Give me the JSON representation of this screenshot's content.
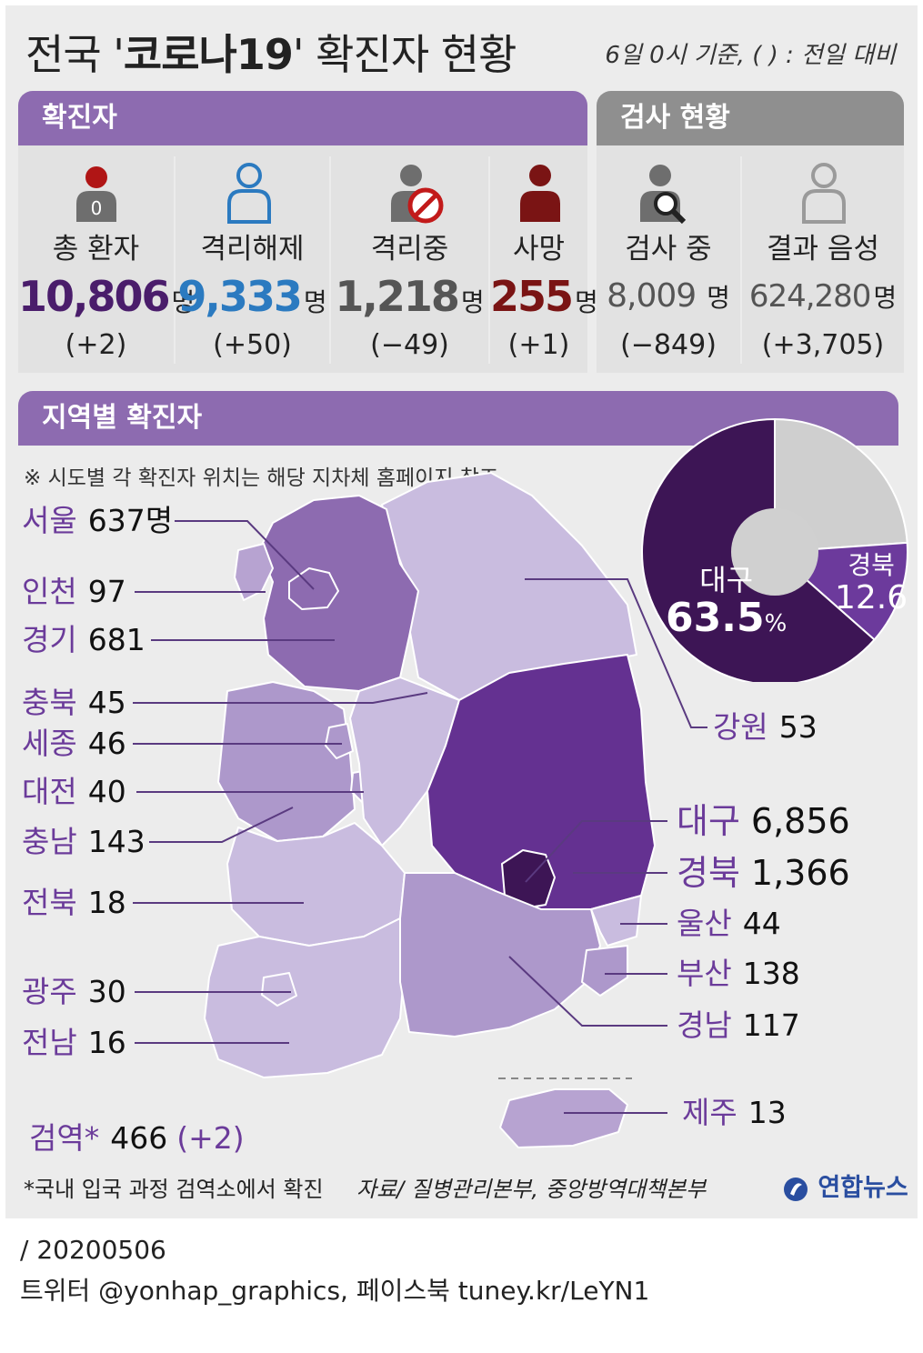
{
  "header": {
    "title_prefix": "전국 '",
    "title_bold": "코로나19",
    "title_suffix": "' 확진자 현황",
    "basis": "6일 0시 기준, ( ) : 전일 대비"
  },
  "confirmed": {
    "header": "확진자",
    "items": [
      {
        "label": "총 환자",
        "value": "10,806",
        "unit": "명",
        "change": "(+2)",
        "icon": "person-badge-icon"
      },
      {
        "label": "격리해제",
        "value": "9,333",
        "unit": "명",
        "change": "(+50)",
        "icon": "person-outline-icon"
      },
      {
        "label": "격리중",
        "value": "1,218",
        "unit": "명",
        "change": "(−49)",
        "icon": "person-prohibited-icon"
      },
      {
        "label": "사망",
        "value": "255",
        "unit": "명",
        "change": "(+1)",
        "icon": "person-solid-icon"
      }
    ]
  },
  "testing": {
    "header": "검사 현황",
    "items": [
      {
        "label": "검사 중",
        "value": "8,009",
        "unit": " 명",
        "change": "(−849)",
        "icon": "person-magnifier-icon"
      },
      {
        "label": "결과 음성",
        "value": "624,280",
        "unit": "명",
        "change": "(+3,705)",
        "icon": "person-outline-gray-icon"
      }
    ]
  },
  "regional": {
    "header": "지역별 확진자",
    "note": "※ 시도별 각 확진자 위치는 해당 지차체 홈페이지 참조",
    "left": [
      {
        "name": "서울",
        "value": "637명"
      },
      {
        "name": "인천",
        "value": "97"
      },
      {
        "name": "경기",
        "value": "681"
      },
      {
        "name": "충북",
        "value": "45"
      },
      {
        "name": "세종",
        "value": "46"
      },
      {
        "name": "대전",
        "value": "40"
      },
      {
        "name": "충남",
        "value": "143"
      },
      {
        "name": "전북",
        "value": "18"
      },
      {
        "name": "광주",
        "value": "30"
      },
      {
        "name": "전남",
        "value": "16"
      }
    ],
    "right": [
      {
        "name": "강원",
        "value": "53"
      },
      {
        "name": "대구",
        "value": "6,856"
      },
      {
        "name": "경북",
        "value": "1,366"
      },
      {
        "name": "울산",
        "value": "44"
      },
      {
        "name": "부산",
        "value": "138"
      },
      {
        "name": "경남",
        "value": "117"
      },
      {
        "name": "제주",
        "value": "13"
      }
    ],
    "quarantine": {
      "name": "검역*",
      "value": "466",
      "change": "(+2)"
    }
  },
  "chart_data": {
    "type": "pie",
    "slices": [
      {
        "label": "대구",
        "value": 63.5
      },
      {
        "label": "경북",
        "value": 12.6
      },
      {
        "label": "",
        "value": 23.9
      }
    ],
    "value_labels": {
      "daegu": "63.5",
      "gyeongbuk": "12.6",
      "unit": "%"
    },
    "colors": {
      "daegu": "#3d1555",
      "gyeongbuk": "#6c3a9c",
      "other": "#cfcfcf"
    }
  },
  "footer": {
    "footnote": "*국내 입국 과정 검역소에서 확진",
    "source": "자료/ 질병관리본부, 중앙방역대책본부",
    "logo": "연합뉴스",
    "date": "/ 20200506",
    "social": "트위터 @yonhap_graphics, 페이스북 tuney.kr/LeYN1"
  },
  "colors": {
    "purple_header": "#8d6bb0",
    "gray_header": "#8f8f8f",
    "total": "#4a1d6b",
    "released": "#2b7ac0",
    "isolated": "#555555",
    "deaths": "#7a1414",
    "testing_value": "#555555"
  }
}
